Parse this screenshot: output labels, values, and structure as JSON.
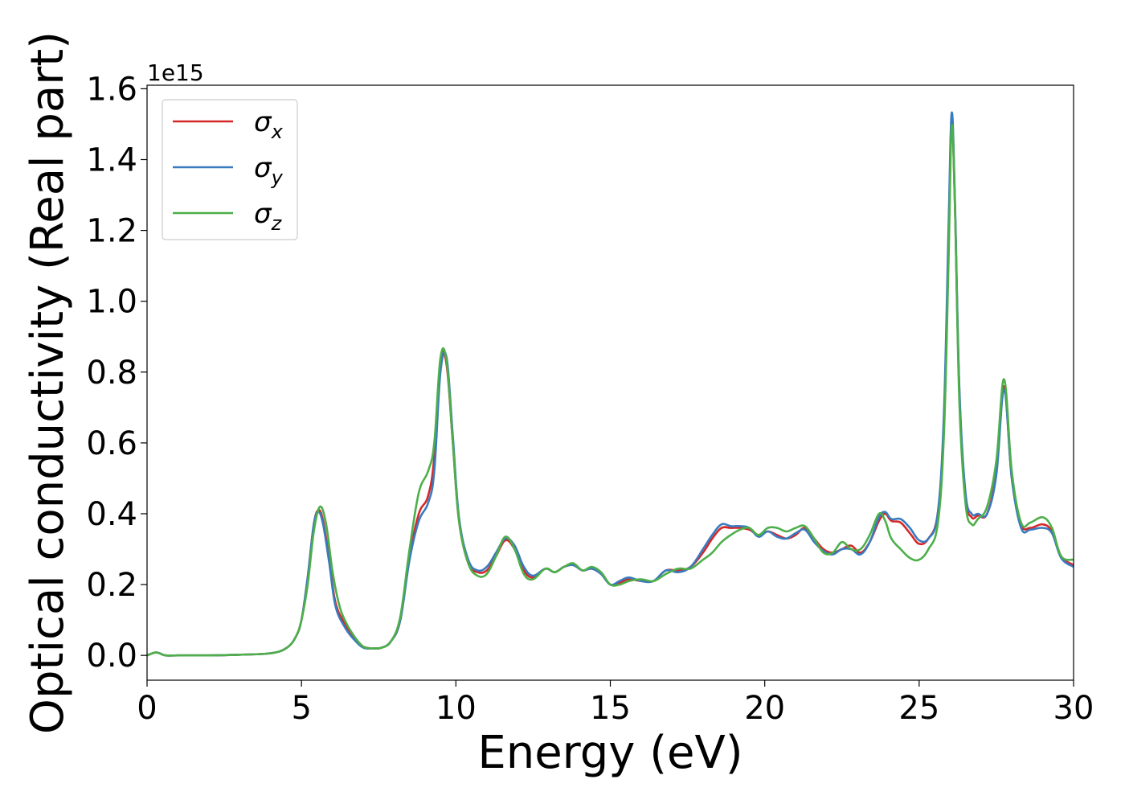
{
  "chart_data": {
    "type": "line",
    "title": "",
    "xlabel": "Energy (eV)",
    "ylabel": "Optical conductivity (Real part)",
    "y_offset_text": "1e15",
    "xlim": [
      0,
      30
    ],
    "ylim": [
      -0.07,
      1.61
    ],
    "xticks": [
      0,
      5,
      10,
      15,
      20,
      25,
      30
    ],
    "xtick_labels": [
      "0",
      "5",
      "10",
      "15",
      "20",
      "25",
      "30"
    ],
    "yticks": [
      0.0,
      0.2,
      0.4,
      0.6,
      0.8,
      1.0,
      1.2,
      1.4,
      1.6
    ],
    "ytick_labels": [
      "0.0",
      "0.2",
      "0.4",
      "0.6",
      "0.8",
      "1.0",
      "1.2",
      "1.4",
      "1.6"
    ],
    "grid": false,
    "legend_position": "top-left",
    "series": [
      {
        "name": "σx",
        "symbol": "σ",
        "subscript": "x",
        "color": "#d62728",
        "x": [
          0,
          0.3,
          0.6,
          1,
          2,
          3,
          4,
          4.5,
          4.8,
          5.0,
          5.2,
          5.4,
          5.55,
          5.7,
          5.9,
          6.1,
          6.4,
          6.7,
          7.0,
          7.3,
          7.6,
          7.9,
          8.2,
          8.5,
          8.8,
          9.1,
          9.3,
          9.5,
          9.7,
          9.9,
          10.1,
          10.4,
          10.7,
          11.0,
          11.3,
          11.6,
          11.9,
          12.2,
          12.5,
          12.9,
          13.2,
          13.5,
          13.8,
          14.1,
          14.4,
          14.7,
          15.0,
          15.3,
          15.6,
          16.0,
          16.4,
          16.8,
          17.2,
          17.6,
          18.0,
          18.3,
          18.6,
          18.9,
          19.2,
          19.5,
          19.8,
          20.1,
          20.4,
          20.7,
          21.0,
          21.3,
          21.6,
          21.9,
          22.2,
          22.5,
          22.8,
          23.1,
          23.4,
          23.7,
          23.9,
          24.1,
          24.4,
          24.7,
          25.0,
          25.3,
          25.6,
          25.8,
          25.95,
          26.05,
          26.15,
          26.3,
          26.5,
          26.7,
          26.9,
          27.2,
          27.5,
          27.75,
          28.0,
          28.3,
          28.6,
          29.0,
          29.3,
          29.6,
          30.0
        ],
        "values": [
          0.0,
          0.008,
          0.0,
          0.0,
          0.0,
          0.002,
          0.006,
          0.02,
          0.05,
          0.1,
          0.22,
          0.37,
          0.41,
          0.38,
          0.27,
          0.15,
          0.09,
          0.05,
          0.025,
          0.02,
          0.022,
          0.04,
          0.1,
          0.28,
          0.4,
          0.45,
          0.56,
          0.83,
          0.82,
          0.6,
          0.38,
          0.26,
          0.235,
          0.24,
          0.28,
          0.325,
          0.3,
          0.24,
          0.22,
          0.245,
          0.235,
          0.25,
          0.255,
          0.24,
          0.245,
          0.23,
          0.2,
          0.205,
          0.215,
          0.21,
          0.21,
          0.24,
          0.24,
          0.25,
          0.29,
          0.33,
          0.36,
          0.36,
          0.36,
          0.355,
          0.34,
          0.35,
          0.34,
          0.33,
          0.34,
          0.36,
          0.33,
          0.3,
          0.29,
          0.3,
          0.31,
          0.29,
          0.32,
          0.38,
          0.4,
          0.38,
          0.375,
          0.345,
          0.315,
          0.33,
          0.4,
          0.65,
          1.15,
          1.52,
          1.3,
          0.75,
          0.45,
          0.39,
          0.395,
          0.4,
          0.52,
          0.76,
          0.5,
          0.37,
          0.36,
          0.37,
          0.35,
          0.28,
          0.255
        ]
      },
      {
        "name": "σy",
        "symbol": "σ",
        "subscript": "y",
        "color": "#3a7bbf",
        "x": [
          0,
          0.3,
          0.6,
          1,
          2,
          3,
          4,
          4.5,
          4.8,
          5.0,
          5.2,
          5.4,
          5.55,
          5.7,
          5.9,
          6.1,
          6.4,
          6.7,
          7.0,
          7.3,
          7.6,
          7.9,
          8.2,
          8.5,
          8.8,
          9.1,
          9.3,
          9.5,
          9.7,
          9.9,
          10.1,
          10.4,
          10.7,
          11.0,
          11.3,
          11.6,
          11.9,
          12.2,
          12.5,
          12.9,
          13.2,
          13.5,
          13.8,
          14.1,
          14.4,
          14.7,
          15.0,
          15.3,
          15.6,
          16.0,
          16.4,
          16.8,
          17.2,
          17.6,
          18.0,
          18.3,
          18.6,
          18.9,
          19.2,
          19.5,
          19.8,
          20.1,
          20.4,
          20.7,
          21.0,
          21.3,
          21.6,
          21.9,
          22.2,
          22.5,
          22.8,
          23.1,
          23.4,
          23.7,
          23.9,
          24.1,
          24.4,
          24.7,
          25.0,
          25.3,
          25.6,
          25.8,
          25.95,
          26.05,
          26.15,
          26.3,
          26.5,
          26.7,
          26.9,
          27.2,
          27.5,
          27.75,
          28.0,
          28.3,
          28.6,
          29.0,
          29.3,
          29.6,
          30.0
        ],
        "values": [
          0.0,
          0.008,
          0.0,
          0.0,
          0.0,
          0.002,
          0.006,
          0.02,
          0.05,
          0.1,
          0.22,
          0.37,
          0.405,
          0.37,
          0.26,
          0.14,
          0.08,
          0.045,
          0.022,
          0.02,
          0.022,
          0.04,
          0.1,
          0.27,
          0.38,
          0.43,
          0.52,
          0.8,
          0.84,
          0.62,
          0.39,
          0.27,
          0.24,
          0.25,
          0.29,
          0.33,
          0.31,
          0.25,
          0.225,
          0.245,
          0.235,
          0.25,
          0.255,
          0.24,
          0.245,
          0.23,
          0.2,
          0.21,
          0.22,
          0.21,
          0.21,
          0.24,
          0.235,
          0.25,
          0.3,
          0.34,
          0.37,
          0.365,
          0.365,
          0.36,
          0.335,
          0.35,
          0.335,
          0.33,
          0.345,
          0.355,
          0.32,
          0.295,
          0.285,
          0.3,
          0.3,
          0.285,
          0.32,
          0.39,
          0.405,
          0.385,
          0.385,
          0.36,
          0.325,
          0.33,
          0.4,
          0.68,
          1.2,
          1.53,
          1.32,
          0.76,
          0.46,
          0.4,
          0.4,
          0.4,
          0.51,
          0.75,
          0.5,
          0.36,
          0.355,
          0.36,
          0.345,
          0.275,
          0.25
        ]
      },
      {
        "name": "σz",
        "symbol": "σ",
        "subscript": "z",
        "color": "#4daf4a",
        "x": [
          0,
          0.3,
          0.6,
          1,
          2,
          3,
          4,
          4.5,
          4.8,
          5.0,
          5.2,
          5.4,
          5.6,
          5.8,
          6.0,
          6.2,
          6.4,
          6.7,
          7.0,
          7.3,
          7.6,
          7.9,
          8.2,
          8.5,
          8.8,
          9.1,
          9.3,
          9.5,
          9.7,
          9.9,
          10.1,
          10.4,
          10.7,
          11.0,
          11.3,
          11.6,
          11.9,
          12.2,
          12.5,
          12.9,
          13.2,
          13.5,
          13.8,
          14.1,
          14.4,
          14.7,
          15.0,
          15.3,
          15.6,
          16.0,
          16.4,
          16.8,
          17.2,
          17.6,
          18.0,
          18.3,
          18.6,
          18.9,
          19.2,
          19.5,
          19.8,
          20.1,
          20.4,
          20.7,
          21.0,
          21.3,
          21.6,
          21.9,
          22.2,
          22.5,
          22.8,
          23.1,
          23.4,
          23.7,
          23.9,
          24.1,
          24.4,
          24.7,
          25.0,
          25.3,
          25.6,
          25.8,
          25.95,
          26.05,
          26.15,
          26.3,
          26.5,
          26.7,
          26.9,
          27.2,
          27.5,
          27.75,
          28.0,
          28.3,
          28.6,
          29.0,
          29.3,
          29.6,
          30.0
        ],
        "values": [
          0.0,
          0.008,
          0.0,
          0.0,
          0.0,
          0.002,
          0.006,
          0.02,
          0.05,
          0.1,
          0.2,
          0.35,
          0.42,
          0.37,
          0.24,
          0.15,
          0.1,
          0.055,
          0.025,
          0.02,
          0.022,
          0.04,
          0.11,
          0.3,
          0.46,
          0.52,
          0.6,
          0.84,
          0.83,
          0.6,
          0.38,
          0.26,
          0.225,
          0.23,
          0.28,
          0.335,
          0.3,
          0.23,
          0.215,
          0.245,
          0.235,
          0.25,
          0.26,
          0.24,
          0.25,
          0.235,
          0.2,
          0.2,
          0.21,
          0.215,
          0.21,
          0.23,
          0.245,
          0.245,
          0.27,
          0.29,
          0.32,
          0.34,
          0.355,
          0.36,
          0.34,
          0.36,
          0.36,
          0.35,
          0.36,
          0.365,
          0.33,
          0.29,
          0.29,
          0.32,
          0.3,
          0.3,
          0.34,
          0.4,
          0.38,
          0.33,
          0.3,
          0.275,
          0.27,
          0.3,
          0.37,
          0.62,
          1.1,
          1.49,
          1.3,
          0.72,
          0.43,
          0.37,
          0.385,
          0.42,
          0.55,
          0.78,
          0.52,
          0.375,
          0.375,
          0.39,
          0.36,
          0.28,
          0.27
        ]
      }
    ]
  }
}
